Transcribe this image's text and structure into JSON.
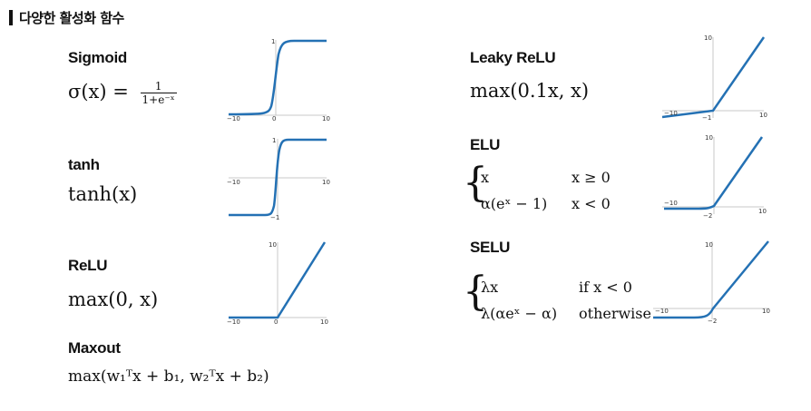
{
  "header": {
    "title": "다양한 활성화 함수"
  },
  "functions": {
    "sigmoid": {
      "name": "Sigmoid",
      "formula_lhs": "σ(x) =",
      "frac_num": "1",
      "frac_den": "1+e⁻ˣ"
    },
    "tanh": {
      "name": "tanh",
      "formula": "tanh(x)"
    },
    "relu": {
      "name": "ReLU",
      "formula": "max(0, x)"
    },
    "maxout": {
      "name": "Maxout",
      "formula": "max(w₁ᵀx + b₁, w₂ᵀx + b₂)"
    },
    "leaky": {
      "name": "Leaky ReLU",
      "formula": "max(0.1x, x)"
    },
    "elu": {
      "name": "ELU",
      "case1_expr": "x",
      "case1_cond": "x ≥ 0",
      "case2_expr": "α(eˣ − 1)",
      "case2_cond": "x < 0"
    },
    "selu": {
      "name": "SELU",
      "case1_expr": "λx",
      "case1_cond": "if x < 0",
      "case2_expr": "λ(αeˣ − α)",
      "case2_cond": "otherwise"
    }
  },
  "plots": {
    "sigmoid": {
      "xmin_label": "−10",
      "xmax_label": "10",
      "origin_label": "0",
      "ytop_label": "1"
    },
    "tanh": {
      "xmin_label": "−10",
      "xmax_label": "10",
      "ytop_label": "1",
      "ybot_label": "−1"
    },
    "relu": {
      "xmin_label": "−10",
      "xmax_label": "10",
      "origin_label": "0",
      "ytop_label": "10"
    },
    "leaky": {
      "xmin_label": "−10",
      "xmax_label": "10",
      "ytop_label": "10",
      "ybot_label": "−1"
    },
    "elu": {
      "xmin_label": "−10",
      "xmax_label": "10",
      "ytop_label": "10",
      "ybot_label": "−2"
    },
    "selu": {
      "xmin_label": "−10",
      "xmax_label": "10",
      "ytop_label": "10",
      "ybot_label": "−2"
    }
  },
  "colors": {
    "curve": "#2471b4",
    "axis": "#c8c8c8"
  }
}
